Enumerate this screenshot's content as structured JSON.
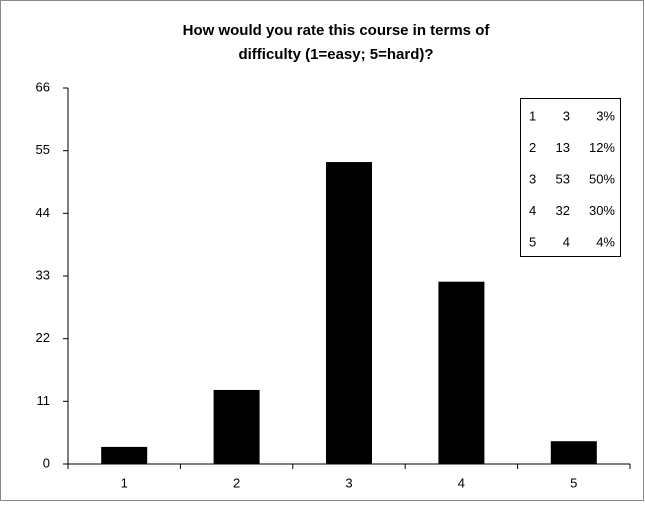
{
  "chart_data": {
    "type": "bar",
    "title": [
      "How would you rate this course in terms of",
      "difficulty (1=easy; 5=hard)?"
    ],
    "categories": [
      "1",
      "2",
      "3",
      "4",
      "5"
    ],
    "values": [
      3,
      13,
      53,
      32,
      4
    ],
    "percentages": [
      3,
      12,
      50,
      30,
      4
    ],
    "percentage_labels": [
      "3%",
      "12%",
      "50%",
      "30%",
      "4%"
    ],
    "color": "#000000",
    "ylim": [
      0,
      66
    ],
    "yticks": [
      0,
      11,
      22,
      33,
      44,
      55,
      66
    ],
    "grid": false
  }
}
